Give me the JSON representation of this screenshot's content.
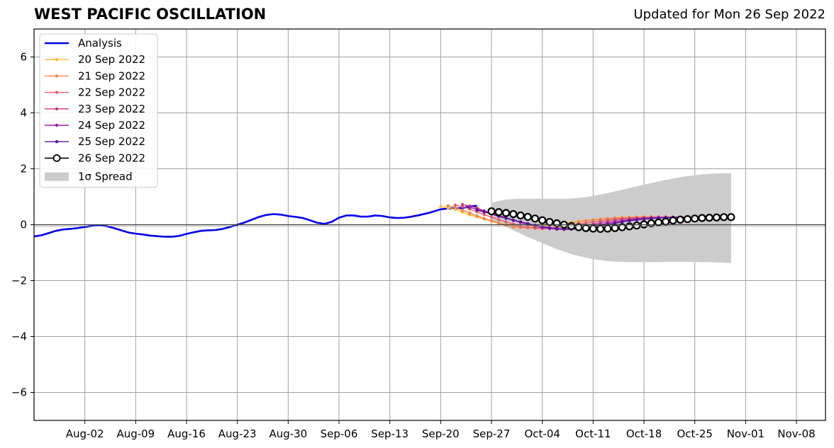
{
  "chart_data": {
    "type": "line",
    "title": "WEST PACIFIC OSCILLATION",
    "subtitle": "Updated for Mon 26 Sep 2022",
    "xlabel": "",
    "ylabel": "",
    "xlim": [
      "2022-07-26",
      "2022-11-12"
    ],
    "ylim": [
      -7,
      7
    ],
    "grid": true,
    "legend_position": "top-left",
    "x_ticks": [
      "Aug-02",
      "Aug-09",
      "Aug-16",
      "Aug-23",
      "Aug-30",
      "Sep-06",
      "Sep-13",
      "Sep-20",
      "Sep-27",
      "Oct-04",
      "Oct-11",
      "Oct-18",
      "Oct-25",
      "Nov-01",
      "Nov-08"
    ],
    "x_tick_dates": [
      "2022-08-02",
      "2022-08-09",
      "2022-08-16",
      "2022-08-23",
      "2022-08-30",
      "2022-09-06",
      "2022-09-13",
      "2022-09-20",
      "2022-09-27",
      "2022-10-04",
      "2022-10-11",
      "2022-10-18",
      "2022-10-25",
      "2022-11-01",
      "2022-11-08"
    ],
    "y_ticks": [
      6,
      4,
      2,
      0,
      -2,
      -4,
      -6
    ],
    "y_tick_labels": [
      "6",
      "4",
      "2",
      "0",
      "−2",
      "−4",
      "−6"
    ],
    "series": [
      {
        "name": "Analysis",
        "color": "#0000ee",
        "start": "2022-07-26",
        "values": [
          -0.42,
          -0.38,
          -0.3,
          -0.22,
          -0.17,
          -0.15,
          -0.12,
          -0.08,
          -0.04,
          -0.02,
          -0.05,
          -0.12,
          -0.2,
          -0.28,
          -0.32,
          -0.35,
          -0.39,
          -0.41,
          -0.43,
          -0.43,
          -0.4,
          -0.33,
          -0.27,
          -0.22,
          -0.2,
          -0.19,
          -0.15,
          -0.08,
          0.0,
          0.08,
          0.18,
          0.28,
          0.35,
          0.38,
          0.36,
          0.31,
          0.28,
          0.24,
          0.16,
          0.07,
          0.03,
          0.1,
          0.25,
          0.33,
          0.33,
          0.29,
          0.29,
          0.33,
          0.31,
          0.26,
          0.24,
          0.25,
          0.29,
          0.34,
          0.4,
          0.47,
          0.55,
          0.58,
          0.58,
          0.6,
          0.65,
          0.68
        ]
      },
      {
        "name": "20 Sep 2022",
        "color": "#fcb830",
        "start": "2022-09-20",
        "values": [
          0.65,
          0.6,
          0.55,
          0.45,
          0.35,
          0.28,
          0.2,
          0.12,
          0.05,
          0.0,
          -0.04,
          -0.07,
          -0.08,
          -0.07,
          -0.05,
          -0.02,
          0.02,
          0.05,
          0.08,
          0.12,
          0.15,
          0.18,
          0.2,
          0.22,
          0.24,
          0.26,
          0.27,
          0.28,
          0.28,
          0.29
        ]
      },
      {
        "name": "21 Sep 2022",
        "color": "#f2844b",
        "start": "2022-09-21",
        "values": [
          0.68,
          0.62,
          0.52,
          0.42,
          0.32,
          0.22,
          0.14,
          0.06,
          -0.02,
          -0.08,
          -0.1,
          -0.11,
          -0.1,
          -0.08,
          -0.05,
          -0.02,
          0.02,
          0.06,
          0.1,
          0.14,
          0.17,
          0.2,
          0.22,
          0.24,
          0.25,
          0.26,
          0.27,
          0.27,
          0.28,
          0.28
        ]
      },
      {
        "name": "22 Sep 2022",
        "color": "#e5616a",
        "start": "2022-09-22",
        "values": [
          0.7,
          0.65,
          0.56,
          0.46,
          0.36,
          0.27,
          0.18,
          0.1,
          0.02,
          -0.05,
          -0.1,
          -0.13,
          -0.14,
          -0.13,
          -0.1,
          -0.06,
          -0.02,
          0.02,
          0.06,
          0.1,
          0.14,
          0.17,
          0.2,
          0.22,
          0.24,
          0.25,
          0.26,
          0.27,
          0.27,
          0.28
        ]
      },
      {
        "name": "23 Sep 2022",
        "color": "#c43c87",
        "start": "2022-09-23",
        "values": [
          0.72,
          0.67,
          0.6,
          0.5,
          0.42,
          0.33,
          0.24,
          0.16,
          0.08,
          0.0,
          -0.06,
          -0.11,
          -0.14,
          -0.15,
          -0.14,
          -0.11,
          -0.07,
          -0.02,
          0.02,
          0.07,
          0.11,
          0.15,
          0.18,
          0.2,
          0.22,
          0.24,
          0.25,
          0.26,
          0.27,
          0.27
        ]
      },
      {
        "name": "24 Sep 2022",
        "color": "#9a1f9e",
        "start": "2022-09-24",
        "values": [
          0.62,
          0.55,
          0.48,
          0.4,
          0.33,
          0.25,
          0.17,
          0.1,
          0.04,
          -0.03,
          -0.09,
          -0.13,
          -0.16,
          -0.17,
          -0.16,
          -0.13,
          -0.09,
          -0.05,
          0.0,
          0.05,
          0.09,
          0.13,
          0.17,
          0.2,
          0.22,
          0.24,
          0.25,
          0.26,
          0.27,
          0.27
        ]
      },
      {
        "name": "25 Sep 2022",
        "color": "#5b0fa0",
        "start": "2022-09-25",
        "values": [
          0.52,
          0.45,
          0.38,
          0.3,
          0.23,
          0.16,
          0.1,
          0.04,
          -0.02,
          -0.07,
          -0.11,
          -0.14,
          -0.16,
          -0.16,
          -0.15,
          -0.12,
          -0.08,
          -0.04,
          0.0,
          0.05,
          0.1,
          0.14,
          0.17,
          0.2,
          0.22,
          0.24,
          0.25,
          0.26,
          0.27,
          0.27
        ]
      },
      {
        "name": "26 Sep 2022",
        "color": "#000000",
        "start": "2022-09-27",
        "values": [
          0.48,
          0.45,
          0.42,
          0.38,
          0.33,
          0.28,
          0.22,
          0.16,
          0.1,
          0.05,
          0.0,
          -0.05,
          -0.09,
          -0.12,
          -0.14,
          -0.15,
          -0.14,
          -0.12,
          -0.09,
          -0.06,
          -0.03,
          0.01,
          0.05,
          0.08,
          0.11,
          0.15,
          0.18,
          0.2,
          0.22,
          0.24,
          0.25,
          0.26,
          0.27,
          0.27
        ]
      }
    ],
    "spread": {
      "name": "1σ Spread",
      "color": "#cccccc",
      "start": "2022-09-27",
      "upper": [
        0.78,
        0.85,
        0.9,
        0.92,
        0.93,
        0.93,
        0.93,
        0.93,
        0.93,
        0.93,
        0.93,
        0.94,
        0.96,
        0.99,
        1.03,
        1.08,
        1.13,
        1.19,
        1.25,
        1.31,
        1.37,
        1.43,
        1.49,
        1.55,
        1.6,
        1.65,
        1.7,
        1.74,
        1.77,
        1.8,
        1.82,
        1.83,
        1.84,
        1.84
      ],
      "lower": [
        0.18,
        0.05,
        -0.08,
        -0.2,
        -0.32,
        -0.44,
        -0.55,
        -0.66,
        -0.77,
        -0.87,
        -0.96,
        -1.05,
        -1.12,
        -1.18,
        -1.23,
        -1.27,
        -1.3,
        -1.32,
        -1.33,
        -1.34,
        -1.34,
        -1.34,
        -1.34,
        -1.34,
        -1.33,
        -1.33,
        -1.33,
        -1.33,
        -1.33,
        -1.34,
        -1.34,
        -1.35,
        -1.36,
        -1.37
      ]
    }
  }
}
